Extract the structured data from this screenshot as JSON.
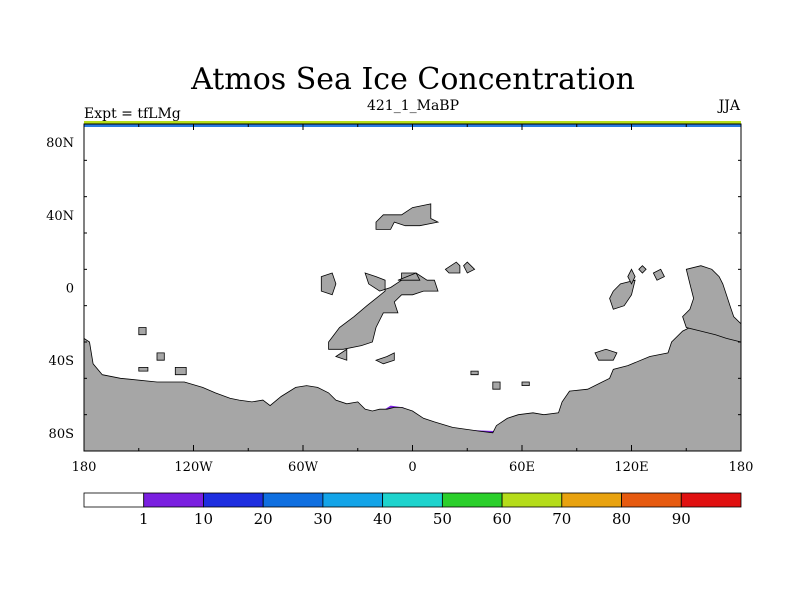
{
  "chart_data": {
    "type": "heatmap",
    "title": "Atmos Sea Ice Concentration",
    "subtitle_left": "Expt = tfLMg",
    "subtitle_center": "421_1_MaBP",
    "subtitle_right": "JJA",
    "x_ticks": [
      "180",
      "120W",
      "60W",
      "0",
      "60E",
      "120E",
      "180"
    ],
    "y_ticks": [
      "80N",
      "40N",
      "0",
      "40S",
      "80S"
    ],
    "xlim": [
      -180,
      180
    ],
    "ylim": [
      -90,
      90
    ],
    "colorbar": {
      "labels": [
        "1",
        "10",
        "20",
        "30",
        "40",
        "50",
        "60",
        "70",
        "80",
        "90"
      ],
      "colors": [
        "#ffffff",
        "#7a1fe0",
        "#1e2ee0",
        "#0f6fe0",
        "#13a4e8",
        "#1ed3cd",
        "#2bcf2b",
        "#b5dc1a",
        "#e8a20f",
        "#e65a0f",
        "#e01010"
      ]
    },
    "land_color": "#a6a6a6"
  }
}
